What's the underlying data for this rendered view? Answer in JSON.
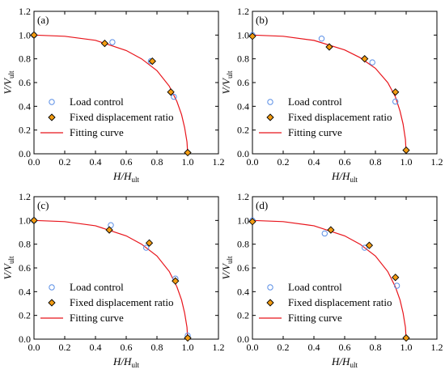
{
  "figure": {
    "colors": {
      "fit_curve": "#e8141b",
      "load_control": "#5b8fe6",
      "fixed_marker_fill": "#f39c12",
      "axes": "#000000"
    },
    "legend_labels": {
      "load_control": "Load control",
      "fixed_displacement": "Fixed displacement ratio",
      "fitting": "Fitting curve"
    },
    "x_ticks": [
      "0.0",
      "0.2",
      "0.4",
      "0.6",
      "0.8",
      "1.0",
      "1.2"
    ],
    "y_ticks": [
      "0.0",
      "0.2",
      "0.4",
      "0.6",
      "0.8",
      "1.0",
      "1.2"
    ]
  },
  "chart_data": [
    {
      "type": "scatter",
      "panel_label": "(a)",
      "xlabel": "H/H_ult",
      "ylabel": "V/V_ult",
      "xlim": [
        0,
        1.2
      ],
      "ylim": [
        0,
        1.2
      ],
      "legend": "lower-left",
      "series": [
        {
          "name": "Load control",
          "marker": "open-circle",
          "x": [
            0.0,
            0.51,
            0.76,
            0.91
          ],
          "y": [
            1.0,
            0.94,
            0.78,
            0.48
          ]
        },
        {
          "name": "Fixed displacement ratio",
          "marker": "diamond",
          "x": [
            0.0,
            0.46,
            0.77,
            0.89,
            1.0
          ],
          "y": [
            1.0,
            0.93,
            0.78,
            0.52,
            0.01
          ]
        },
        {
          "name": "Fitting curve",
          "kind": "line",
          "x": [
            0.0,
            0.2,
            0.4,
            0.6,
            0.7,
            0.8,
            0.88,
            0.93,
            0.96,
            0.98,
            0.995,
            1.0
          ],
          "y": [
            1.0,
            0.99,
            0.956,
            0.87,
            0.8,
            0.7,
            0.57,
            0.44,
            0.33,
            0.22,
            0.1,
            0.0
          ]
        }
      ]
    },
    {
      "type": "scatter",
      "panel_label": "(b)",
      "xlabel": "H/H_ult",
      "ylabel": "V/V_ult",
      "xlim": [
        0,
        1.2
      ],
      "ylim": [
        0,
        1.2
      ],
      "legend": "lower-left",
      "series": [
        {
          "name": "Load control",
          "marker": "open-circle",
          "x": [
            0.0,
            0.45,
            0.78,
            0.93
          ],
          "y": [
            1.0,
            0.97,
            0.77,
            0.44
          ]
        },
        {
          "name": "Fixed displacement ratio",
          "marker": "diamond",
          "x": [
            0.0,
            0.5,
            0.73,
            0.93,
            1.0
          ],
          "y": [
            0.99,
            0.9,
            0.8,
            0.52,
            0.03
          ]
        },
        {
          "name": "Fitting curve",
          "kind": "line",
          "x": [
            0.0,
            0.2,
            0.4,
            0.6,
            0.7,
            0.8,
            0.88,
            0.93,
            0.96,
            0.98,
            0.995,
            1.0
          ],
          "y": [
            1.0,
            0.99,
            0.955,
            0.875,
            0.81,
            0.72,
            0.6,
            0.48,
            0.36,
            0.25,
            0.12,
            0.0
          ]
        }
      ]
    },
    {
      "type": "scatter",
      "panel_label": "(c)",
      "xlabel": "H/H_ult",
      "ylabel": "V/V_ult",
      "xlim": [
        0,
        1.2
      ],
      "ylim": [
        0,
        1.2
      ],
      "legend": "lower-left",
      "series": [
        {
          "name": "Load control",
          "marker": "open-circle",
          "x": [
            0.0,
            0.5,
            0.73,
            0.92,
            1.0
          ],
          "y": [
            1.0,
            0.96,
            0.77,
            0.51,
            0.03
          ]
        },
        {
          "name": "Fixed displacement ratio",
          "marker": "diamond",
          "x": [
            0.0,
            0.49,
            0.75,
            0.92,
            1.0
          ],
          "y": [
            1.0,
            0.92,
            0.81,
            0.49,
            0.01
          ]
        },
        {
          "name": "Fitting curve",
          "kind": "line",
          "x": [
            0.0,
            0.2,
            0.4,
            0.6,
            0.7,
            0.8,
            0.88,
            0.93,
            0.96,
            0.98,
            0.995,
            1.0
          ],
          "y": [
            1.0,
            0.99,
            0.955,
            0.87,
            0.8,
            0.7,
            0.57,
            0.44,
            0.33,
            0.22,
            0.1,
            0.0
          ]
        }
      ]
    },
    {
      "type": "scatter",
      "panel_label": "(d)",
      "xlabel": "H/H_ult",
      "ylabel": "V/V_ult",
      "xlim": [
        0,
        1.2
      ],
      "ylim": [
        0,
        1.2
      ],
      "legend": "lower-left",
      "series": [
        {
          "name": "Load control",
          "marker": "open-circle",
          "x": [
            0.0,
            0.47,
            0.73,
            0.94
          ],
          "y": [
            1.0,
            0.89,
            0.77,
            0.45
          ]
        },
        {
          "name": "Fixed displacement ratio",
          "marker": "diamond",
          "x": [
            0.0,
            0.51,
            0.76,
            0.93,
            1.0
          ],
          "y": [
            0.99,
            0.92,
            0.79,
            0.52,
            0.01
          ]
        },
        {
          "name": "Fitting curve",
          "kind": "line",
          "x": [
            0.0,
            0.2,
            0.4,
            0.6,
            0.7,
            0.8,
            0.88,
            0.93,
            0.96,
            0.98,
            0.995,
            1.0
          ],
          "y": [
            1.0,
            0.99,
            0.955,
            0.87,
            0.8,
            0.7,
            0.57,
            0.44,
            0.33,
            0.22,
            0.1,
            0.0
          ]
        }
      ]
    }
  ]
}
